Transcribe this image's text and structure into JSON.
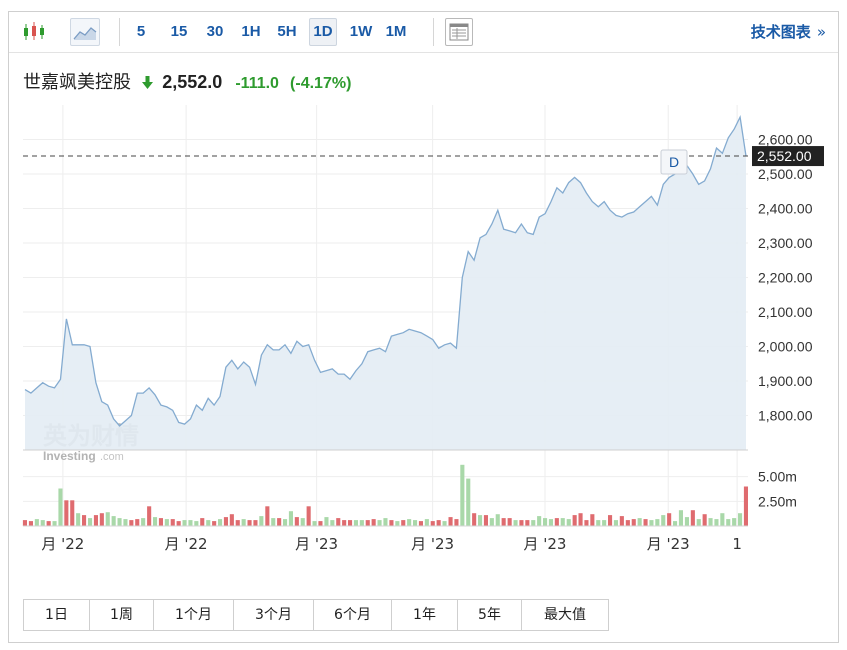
{
  "toolbar": {
    "intervals": [
      "5",
      "15",
      "30",
      "1H",
      "5H",
      "1D",
      "1W",
      "1M"
    ],
    "active_interval": "1D",
    "technical_link": "技术图表",
    "technical_chevron": "»"
  },
  "quote": {
    "name": "世嘉飒美控股",
    "price": "2,552.0",
    "change": "-111.0",
    "change_pct": "(-4.17%)",
    "direction": "down",
    "up_color": "#e0575b",
    "down_color": "#2e9b2e"
  },
  "watermark": {
    "cn": "英为财情",
    "en": "Investing",
    "en_suffix": ".com"
  },
  "chart_data": {
    "type": "area",
    "price_ylim": [
      1700,
      2700
    ],
    "price_ticks": [
      "2,600.00",
      "2,500.00",
      "2,400.00",
      "2,300.00",
      "2,200.00",
      "2,100.00",
      "2,000.00",
      "1,900.00",
      "1,800.00"
    ],
    "price_tick_values": [
      2600,
      2500,
      2400,
      2300,
      2200,
      2100,
      2000,
      1900,
      1800
    ],
    "current_price_label": "2,552.00",
    "current_price": 2552,
    "marker_label": "D",
    "volume_ticks": [
      "5.00m",
      "2.50m"
    ],
    "volume_tick_values": [
      5.0,
      2.5
    ],
    "volume_ylim": [
      0,
      7.5
    ],
    "x_labels": [
      "月 '22",
      "月 '22",
      "月 '23",
      "月 '23",
      "月 '23",
      "月 '23",
      "1"
    ],
    "x_label_positions": [
      0.055,
      0.225,
      0.405,
      0.565,
      0.72,
      0.89,
      0.985
    ],
    "grid": true,
    "series": [
      {
        "values": [
          1875,
          1865,
          1880,
          1895,
          1885,
          1880,
          1905,
          2080,
          2005,
          2005,
          2005,
          2000,
          1895,
          1840,
          1830,
          1790,
          1770,
          1785,
          1800,
          1865,
          1865,
          1880,
          1860,
          1830,
          1825,
          1815,
          1780,
          1775,
          1790,
          1830,
          1815,
          1850,
          1830,
          1855,
          1940,
          1960,
          1935,
          1955,
          1940,
          1890,
          1975,
          2005,
          1990,
          1990,
          2005,
          1980,
          2015,
          2000,
          2005,
          1960,
          1925,
          1930,
          1935,
          1920,
          1920,
          1905,
          1930,
          1950,
          1985,
          1990,
          1995,
          1985,
          2030,
          2035,
          2040,
          2050,
          2045,
          2040,
          2030,
          2020,
          1995,
          2005,
          2010,
          1995,
          2200,
          2275,
          2250,
          2315,
          2325,
          2355,
          2395,
          2340,
          2335,
          2330,
          2355,
          2330,
          2325,
          2375,
          2385,
          2420,
          2460,
          2445,
          2475,
          2490,
          2475,
          2445,
          2420,
          2405,
          2420,
          2395,
          2380,
          2375,
          2385,
          2390,
          2405,
          2420,
          2435,
          2410,
          2470,
          2490,
          2500,
          2530,
          2525,
          2500,
          2470,
          2480,
          2515,
          2575,
          2560,
          2605,
          2630,
          2665,
          2552
        ]
      }
    ],
    "volume": [
      {
        "v": 0.6,
        "up": false
      },
      {
        "v": 0.5,
        "up": false
      },
      {
        "v": 0.7,
        "up": true
      },
      {
        "v": 0.6,
        "up": true
      },
      {
        "v": 0.5,
        "up": false
      },
      {
        "v": 0.5,
        "up": true
      },
      {
        "v": 3.8,
        "up": true
      },
      {
        "v": 2.6,
        "up": false
      },
      {
        "v": 2.6,
        "up": false
      },
      {
        "v": 1.3,
        "up": true
      },
      {
        "v": 1.1,
        "up": false
      },
      {
        "v": 0.8,
        "up": true
      },
      {
        "v": 1.1,
        "up": false
      },
      {
        "v": 1.3,
        "up": false
      },
      {
        "v": 1.4,
        "up": true
      },
      {
        "v": 1.0,
        "up": true
      },
      {
        "v": 0.8,
        "up": true
      },
      {
        "v": 0.7,
        "up": true
      },
      {
        "v": 0.6,
        "up": false
      },
      {
        "v": 0.7,
        "up": false
      },
      {
        "v": 0.8,
        "up": true
      },
      {
        "v": 2.0,
        "up": false
      },
      {
        "v": 0.9,
        "up": true
      },
      {
        "v": 0.8,
        "up": false
      },
      {
        "v": 0.7,
        "up": true
      },
      {
        "v": 0.7,
        "up": false
      },
      {
        "v": 0.5,
        "up": false
      },
      {
        "v": 0.6,
        "up": true
      },
      {
        "v": 0.6,
        "up": true
      },
      {
        "v": 0.5,
        "up": true
      },
      {
        "v": 0.8,
        "up": false
      },
      {
        "v": 0.6,
        "up": true
      },
      {
        "v": 0.5,
        "up": false
      },
      {
        "v": 0.7,
        "up": true
      },
      {
        "v": 0.9,
        "up": false
      },
      {
        "v": 1.2,
        "up": false
      },
      {
        "v": 0.6,
        "up": false
      },
      {
        "v": 0.7,
        "up": true
      },
      {
        "v": 0.6,
        "up": false
      },
      {
        "v": 0.6,
        "up": false
      },
      {
        "v": 1.0,
        "up": true
      },
      {
        "v": 2.0,
        "up": false
      },
      {
        "v": 0.8,
        "up": true
      },
      {
        "v": 0.8,
        "up": false
      },
      {
        "v": 0.7,
        "up": true
      },
      {
        "v": 1.5,
        "up": true
      },
      {
        "v": 0.9,
        "up": false
      },
      {
        "v": 0.8,
        "up": true
      },
      {
        "v": 2.0,
        "up": false
      },
      {
        "v": 0.5,
        "up": true
      },
      {
        "v": 0.5,
        "up": false
      },
      {
        "v": 0.9,
        "up": true
      },
      {
        "v": 0.6,
        "up": true
      },
      {
        "v": 0.8,
        "up": false
      },
      {
        "v": 0.6,
        "up": false
      },
      {
        "v": 0.6,
        "up": false
      },
      {
        "v": 0.6,
        "up": true
      },
      {
        "v": 0.6,
        "up": true
      },
      {
        "v": 0.6,
        "up": false
      },
      {
        "v": 0.7,
        "up": false
      },
      {
        "v": 0.6,
        "up": true
      },
      {
        "v": 0.8,
        "up": true
      },
      {
        "v": 0.6,
        "up": false
      },
      {
        "v": 0.5,
        "up": true
      },
      {
        "v": 0.6,
        "up": false
      },
      {
        "v": 0.7,
        "up": true
      },
      {
        "v": 0.6,
        "up": true
      },
      {
        "v": 0.5,
        "up": false
      },
      {
        "v": 0.7,
        "up": true
      },
      {
        "v": 0.5,
        "up": false
      },
      {
        "v": 0.6,
        "up": false
      },
      {
        "v": 0.5,
        "up": true
      },
      {
        "v": 0.9,
        "up": false
      },
      {
        "v": 0.7,
        "up": false
      },
      {
        "v": 6.2,
        "up": true
      },
      {
        "v": 4.8,
        "up": true
      },
      {
        "v": 1.3,
        "up": false
      },
      {
        "v": 1.1,
        "up": true
      },
      {
        "v": 1.1,
        "up": false
      },
      {
        "v": 0.8,
        "up": true
      },
      {
        "v": 1.2,
        "up": true
      },
      {
        "v": 0.8,
        "up": false
      },
      {
        "v": 0.8,
        "up": false
      },
      {
        "v": 0.6,
        "up": true
      },
      {
        "v": 0.6,
        "up": false
      },
      {
        "v": 0.6,
        "up": false
      },
      {
        "v": 0.6,
        "up": true
      },
      {
        "v": 1.0,
        "up": true
      },
      {
        "v": 0.8,
        "up": true
      },
      {
        "v": 0.7,
        "up": true
      },
      {
        "v": 0.8,
        "up": false
      },
      {
        "v": 0.8,
        "up": true
      },
      {
        "v": 0.7,
        "up": true
      },
      {
        "v": 1.1,
        "up": false
      },
      {
        "v": 1.3,
        "up": false
      },
      {
        "v": 0.6,
        "up": false
      },
      {
        "v": 1.2,
        "up": false
      },
      {
        "v": 0.6,
        "up": true
      },
      {
        "v": 0.6,
        "up": true
      },
      {
        "v": 1.1,
        "up": false
      },
      {
        "v": 0.6,
        "up": true
      },
      {
        "v": 1.0,
        "up": false
      },
      {
        "v": 0.6,
        "up": false
      },
      {
        "v": 0.7,
        "up": false
      },
      {
        "v": 0.8,
        "up": true
      },
      {
        "v": 0.7,
        "up": false
      },
      {
        "v": 0.6,
        "up": true
      },
      {
        "v": 0.7,
        "up": true
      },
      {
        "v": 1.1,
        "up": true
      },
      {
        "v": 1.3,
        "up": false
      },
      {
        "v": 0.5,
        "up": true
      },
      {
        "v": 1.6,
        "up": true
      },
      {
        "v": 0.9,
        "up": true
      },
      {
        "v": 1.6,
        "up": false
      },
      {
        "v": 0.7,
        "up": true
      },
      {
        "v": 1.2,
        "up": false
      },
      {
        "v": 0.8,
        "up": true
      },
      {
        "v": 0.7,
        "up": true
      },
      {
        "v": 1.3,
        "up": true
      },
      {
        "v": 0.7,
        "up": true
      },
      {
        "v": 0.8,
        "up": true
      },
      {
        "v": 1.3,
        "up": true
      },
      {
        "v": 4.0,
        "up": false
      }
    ]
  },
  "ranges": [
    "1日",
    "1周",
    "1个月",
    "3个月",
    "6个月",
    "1年",
    "5年",
    "最大值"
  ]
}
